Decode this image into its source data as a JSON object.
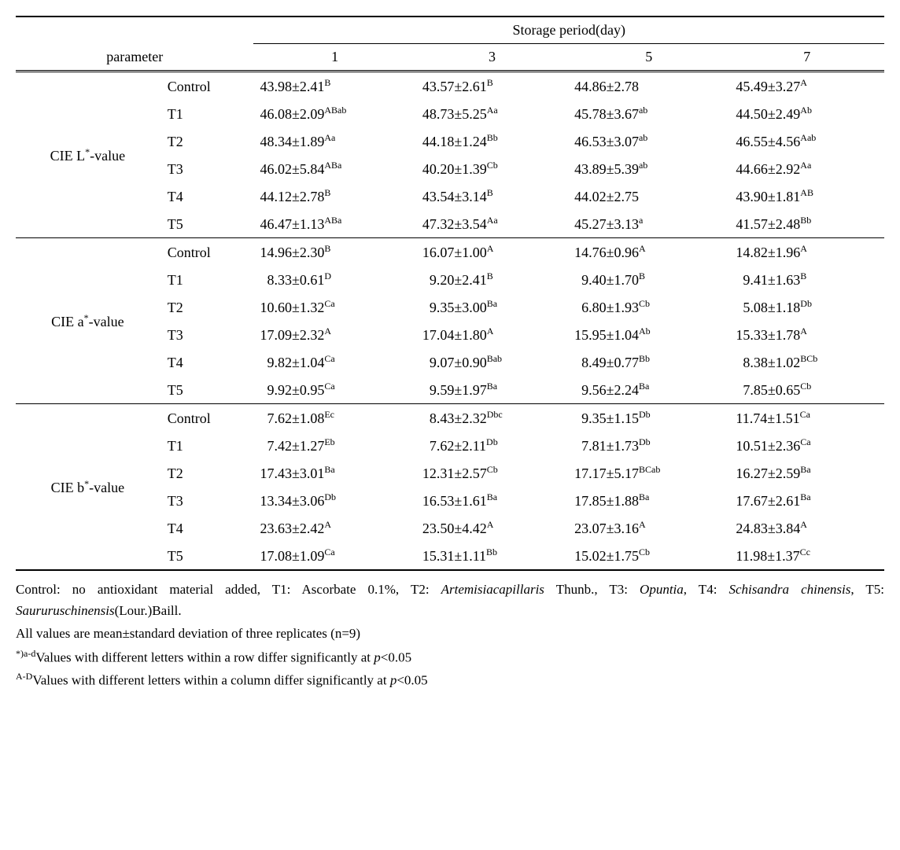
{
  "header": {
    "parameter": "parameter",
    "storage_period": "Storage period(day)",
    "days": [
      "1",
      "3",
      "5",
      "7"
    ]
  },
  "parameters": [
    {
      "label_prefix": "CIE L",
      "label_suffix": "-value",
      "rows": [
        {
          "treatment": "Control",
          "values": [
            {
              "v": "43.98±2.41",
              "s": "B"
            },
            {
              "v": "43.57±2.61",
              "s": "B"
            },
            {
              "v": "44.86±2.78",
              "s": ""
            },
            {
              "v": "45.49±3.27",
              "s": "A"
            }
          ]
        },
        {
          "treatment": "T1",
          "values": [
            {
              "v": "46.08±2.09",
              "s": "ABab"
            },
            {
              "v": "48.73±5.25",
              "s": "Aa"
            },
            {
              "v": "45.78±3.67",
              "s": "ab"
            },
            {
              "v": "44.50±2.49",
              "s": "Ab"
            }
          ]
        },
        {
          "treatment": "T2",
          "values": [
            {
              "v": "48.34±1.89",
              "s": "Aa"
            },
            {
              "v": "44.18±1.24",
              "s": "Bb"
            },
            {
              "v": "46.53±3.07",
              "s": "ab"
            },
            {
              "v": "46.55±4.56",
              "s": "Aab"
            }
          ]
        },
        {
          "treatment": "T3",
          "values": [
            {
              "v": "46.02±5.84",
              "s": "ABa"
            },
            {
              "v": "40.20±1.39",
              "s": "Cb"
            },
            {
              "v": "43.89±5.39",
              "s": "ab"
            },
            {
              "v": "44.66±2.92",
              "s": "Aa"
            }
          ]
        },
        {
          "treatment": "T4",
          "values": [
            {
              "v": "44.12±2.78",
              "s": "B"
            },
            {
              "v": "43.54±3.14",
              "s": "B"
            },
            {
              "v": "44.02±2.75",
              "s": ""
            },
            {
              "v": "43.90±1.81",
              "s": "AB"
            }
          ]
        },
        {
          "treatment": "T5",
          "values": [
            {
              "v": "46.47±1.13",
              "s": "ABa"
            },
            {
              "v": "47.32±3.54",
              "s": "Aa"
            },
            {
              "v": "45.27±3.13",
              "s": "a"
            },
            {
              "v": "41.57±2.48",
              "s": "Bb"
            }
          ]
        }
      ]
    },
    {
      "label_prefix": "CIE a",
      "label_suffix": "-value",
      "rows": [
        {
          "treatment": "Control",
          "values": [
            {
              "v": "14.96±2.30",
              "s": "B"
            },
            {
              "v": "16.07±1.00",
              "s": "A"
            },
            {
              "v": "14.76±0.96",
              "s": "A"
            },
            {
              "v": "14.82±1.96",
              "s": "A"
            }
          ]
        },
        {
          "treatment": "T1",
          "values": [
            {
              "v": "  8.33±0.61",
              "s": "D"
            },
            {
              "v": "  9.20±2.41",
              "s": "B"
            },
            {
              "v": "  9.40±1.70",
              "s": "B"
            },
            {
              "v": "  9.41±1.63",
              "s": "B"
            }
          ]
        },
        {
          "treatment": "T2",
          "values": [
            {
              "v": "10.60±1.32",
              "s": "Ca"
            },
            {
              "v": "  9.35±3.00",
              "s": "Ba"
            },
            {
              "v": "  6.80±1.93",
              "s": "Cb"
            },
            {
              "v": "  5.08±1.18",
              "s": "Db"
            }
          ]
        },
        {
          "treatment": "T3",
          "values": [
            {
              "v": "17.09±2.32",
              "s": "A"
            },
            {
              "v": "17.04±1.80",
              "s": "A"
            },
            {
              "v": "15.95±1.04",
              "s": "Ab"
            },
            {
              "v": "15.33±1.78",
              "s": "A"
            }
          ]
        },
        {
          "treatment": "T4",
          "values": [
            {
              "v": "  9.82±1.04",
              "s": "Ca"
            },
            {
              "v": "  9.07±0.90",
              "s": "Bab"
            },
            {
              "v": "  8.49±0.77",
              "s": "Bb"
            },
            {
              "v": "  8.38±1.02",
              "s": "BCb"
            }
          ]
        },
        {
          "treatment": "T5",
          "values": [
            {
              "v": "  9.92±0.95",
              "s": "Ca"
            },
            {
              "v": "  9.59±1.97",
              "s": "Ba"
            },
            {
              "v": "  9.56±2.24",
              "s": "Ba"
            },
            {
              "v": "  7.85±0.65",
              "s": "Cb"
            }
          ]
        }
      ]
    },
    {
      "label_prefix": "CIE b",
      "label_suffix": "-value",
      "rows": [
        {
          "treatment": "Control",
          "values": [
            {
              "v": "  7.62±1.08",
              "s": "Ec"
            },
            {
              "v": "  8.43±2.32",
              "s": "Dbc"
            },
            {
              "v": "  9.35±1.15",
              "s": "Db"
            },
            {
              "v": "11.74±1.51",
              "s": "Ca"
            }
          ]
        },
        {
          "treatment": "T1",
          "values": [
            {
              "v": "  7.42±1.27",
              "s": "Eb"
            },
            {
              "v": "  7.62±2.11",
              "s": "Db"
            },
            {
              "v": "  7.81±1.73",
              "s": "Db"
            },
            {
              "v": "10.51±2.36",
              "s": "Ca"
            }
          ]
        },
        {
          "treatment": "T2",
          "values": [
            {
              "v": "17.43±3.01",
              "s": "Ba"
            },
            {
              "v": "12.31±2.57",
              "s": "Cb"
            },
            {
              "v": "17.17±5.17",
              "s": "BCab"
            },
            {
              "v": "16.27±2.59",
              "s": "Ba"
            }
          ]
        },
        {
          "treatment": "T3",
          "values": [
            {
              "v": "13.34±3.06",
              "s": "Db"
            },
            {
              "v": "16.53±1.61",
              "s": "Ba"
            },
            {
              "v": "17.85±1.88",
              "s": "Ba"
            },
            {
              "v": "17.67±2.61",
              "s": "Ba"
            }
          ]
        },
        {
          "treatment": "T4",
          "values": [
            {
              "v": "23.63±2.42",
              "s": "A"
            },
            {
              "v": "23.50±4.42",
              "s": "A"
            },
            {
              "v": "23.07±3.16",
              "s": "A"
            },
            {
              "v": "24.83±3.84",
              "s": "A"
            }
          ]
        },
        {
          "treatment": "T5",
          "values": [
            {
              "v": "17.08±1.09",
              "s": "Ca"
            },
            {
              "v": "15.31±1.11",
              "s": "Bb"
            },
            {
              "v": "15.02±1.75",
              "s": "Cb"
            },
            {
              "v": "11.98±1.37",
              "s": "Cc"
            }
          ]
        }
      ]
    }
  ],
  "footnotes": {
    "line1_a": "Control: no antioxidant material added, T1: Ascorbate 0.1%, T2: ",
    "line1_b": "Artemisiacapillaris",
    "line1_c": " Thunb., T3: ",
    "line1_d": "Opuntia",
    "line1_e": ", T4: ",
    "line1_f": "Schisandra chinensis",
    "line1_g": ", T5: ",
    "line1_h": "Saururuschinensis",
    "line1_i": "(Lour.)Baill.",
    "line2": "All values are mean±standard deviation of three replicates (n=9)",
    "line3_sup": "*)a-d",
    "line3": "Values with different letters within a row differ significantly at ",
    "line3_p": "p",
    "line3_end": "<0.05",
    "line4_sup": "A-D",
    "line4": "Values with different letters within a column differ significantly at ",
    "line4_p": "p",
    "line4_end": "<0.05"
  }
}
